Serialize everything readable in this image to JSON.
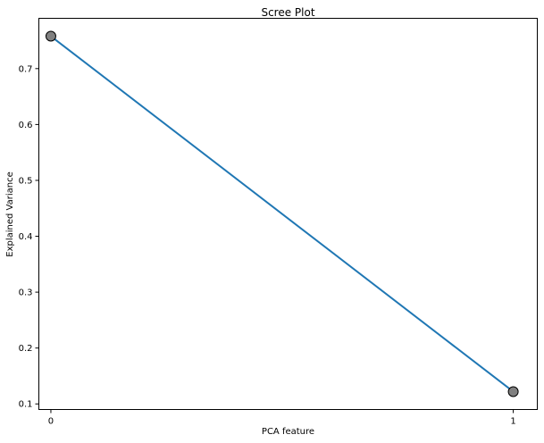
{
  "chart_data": {
    "type": "line",
    "title": "Scree Plot",
    "xlabel": "PCA feature",
    "ylabel": "Explained Variance",
    "x": [
      0,
      1
    ],
    "y": [
      0.758,
      0.122
    ],
    "xticks": [
      "0",
      "1"
    ],
    "yticks": [
      "0.1",
      "0.2",
      "0.3",
      "0.4",
      "0.5",
      "0.6",
      "0.7"
    ],
    "xlim": [
      -0.026,
      1.052
    ],
    "ylim": [
      0.09,
      0.79
    ],
    "grid": false,
    "line_color": "#1f77b4",
    "marker_color": "#808080",
    "marker_edge_color": "#000000"
  }
}
